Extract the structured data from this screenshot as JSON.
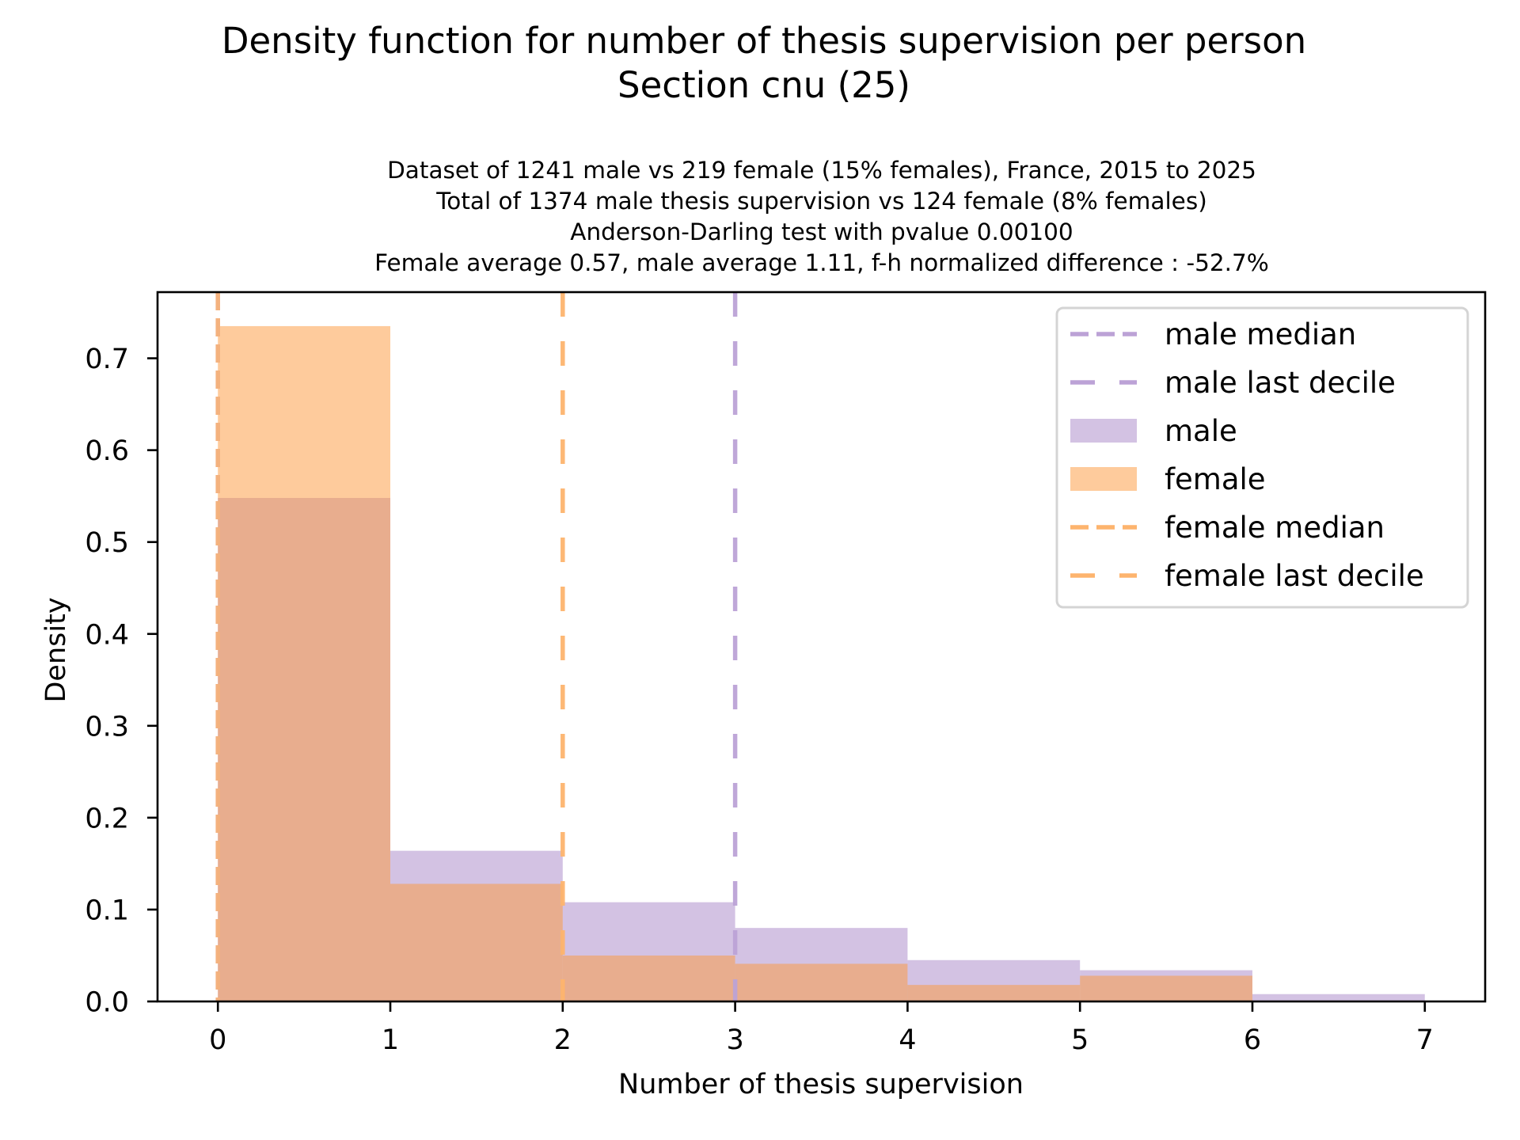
{
  "figure": {
    "title_lines": [
      "Density function for number of thesis supervision per person",
      "Section cnu (25)"
    ],
    "subtitle_lines": [
      "Dataset of 1241 male vs 219 female (15% females), France, 2015 to 2025",
      "Total of 1374 male thesis supervision vs 124 female (8% females)",
      "Anderson-Darling test with pvalue 0.00100",
      "Female average 0.57, male average 1.11, f-h normalized difference : -52.7%"
    ]
  },
  "colors": {
    "male": "#a886c8",
    "female": "#fd9739",
    "male_line": "#bca2d6",
    "female_line": "#fdb46e",
    "legend_border": "#d4d4d4",
    "axes": "#000000"
  },
  "chart_data": {
    "type": "histogram",
    "title": "Density function for number of thesis supervision per person\nSection cnu (25)",
    "xlabel": "Number of thesis supervision",
    "ylabel": "Density",
    "xlim": [
      -0.35,
      7.35
    ],
    "ylim": [
      0,
      0.772
    ],
    "grid": false,
    "x_ticks": [
      0,
      1,
      2,
      3,
      4,
      5,
      6,
      7
    ],
    "x_tick_labels": [
      "0",
      "1",
      "2",
      "3",
      "4",
      "5",
      "6",
      "7"
    ],
    "y_ticks": [
      0.0,
      0.1,
      0.2,
      0.3,
      0.4,
      0.5,
      0.6,
      0.7
    ],
    "y_tick_labels": [
      "0.0",
      "0.1",
      "0.2",
      "0.3",
      "0.4",
      "0.5",
      "0.6",
      "0.7"
    ],
    "bin_edges": [
      0,
      1,
      2,
      3,
      4,
      5,
      6,
      7
    ],
    "series": [
      {
        "name": "male",
        "values": [
          0.548,
          0.164,
          0.108,
          0.08,
          0.045,
          0.034,
          0.008
        ]
      },
      {
        "name": "female",
        "values": [
          0.735,
          0.128,
          0.05,
          0.041,
          0.018,
          0.028,
          0.0
        ]
      }
    ],
    "vlines": [
      {
        "name": "male median",
        "x": 0,
        "style": "dashed",
        "series": "male"
      },
      {
        "name": "male last decile",
        "x": 3,
        "style": "long-dashed",
        "series": "male"
      },
      {
        "name": "female median",
        "x": 0,
        "style": "dashed",
        "series": "female"
      },
      {
        "name": "female last decile",
        "x": 2,
        "style": "long-dashed",
        "series": "female"
      }
    ],
    "legend": {
      "placement": "top-right",
      "entries": [
        {
          "label": "male median",
          "kind": "dashed",
          "series": "male"
        },
        {
          "label": "male last decile",
          "kind": "long-dashed",
          "series": "male"
        },
        {
          "label": "male",
          "kind": "patch",
          "series": "male"
        },
        {
          "label": "female",
          "kind": "patch",
          "series": "female"
        },
        {
          "label": "female median",
          "kind": "dashed",
          "series": "female"
        },
        {
          "label": "female last decile",
          "kind": "long-dashed",
          "series": "female"
        }
      ]
    }
  }
}
